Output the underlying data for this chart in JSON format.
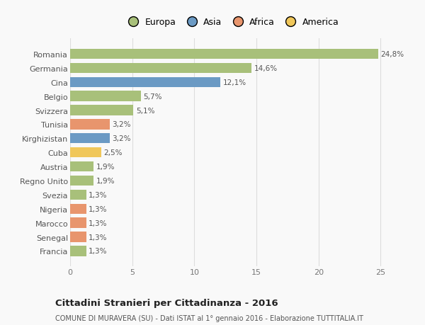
{
  "categories": [
    "Francia",
    "Senegal",
    "Marocco",
    "Nigeria",
    "Svezia",
    "Regno Unito",
    "Austria",
    "Cuba",
    "Kirghizistan",
    "Tunisia",
    "Svizzera",
    "Belgio",
    "Cina",
    "Germania",
    "Romania"
  ],
  "values": [
    1.3,
    1.3,
    1.3,
    1.3,
    1.3,
    1.9,
    1.9,
    2.5,
    3.2,
    3.2,
    5.1,
    5.7,
    12.1,
    14.6,
    24.8
  ],
  "labels": [
    "1,3%",
    "1,3%",
    "1,3%",
    "1,3%",
    "1,3%",
    "1,9%",
    "1,9%",
    "2,5%",
    "3,2%",
    "3,2%",
    "5,1%",
    "5,7%",
    "12,1%",
    "14,6%",
    "24,8%"
  ],
  "colors": [
    "#a8c07a",
    "#e8956d",
    "#e8956d",
    "#e8956d",
    "#a8c07a",
    "#a8c07a",
    "#a8c07a",
    "#f0c75a",
    "#6b9ac4",
    "#e8956d",
    "#a8c07a",
    "#a8c07a",
    "#6b9ac4",
    "#a8c07a",
    "#a8c07a"
  ],
  "legend_labels": [
    "Europa",
    "Asia",
    "Africa",
    "America"
  ],
  "legend_colors": [
    "#a8c07a",
    "#6b9ac4",
    "#e8956d",
    "#f0c75a"
  ],
  "title_bold": "Cittadini Stranieri per Cittadinanza - 2016",
  "subtitle": "COMUNE DI MURAVERA (SU) - Dati ISTAT al 1° gennaio 2016 - Elaborazione TUTTITALIA.IT",
  "xlim": [
    0,
    26
  ],
  "bg_color": "#f9f9f9",
  "grid_color": "#dddddd"
}
